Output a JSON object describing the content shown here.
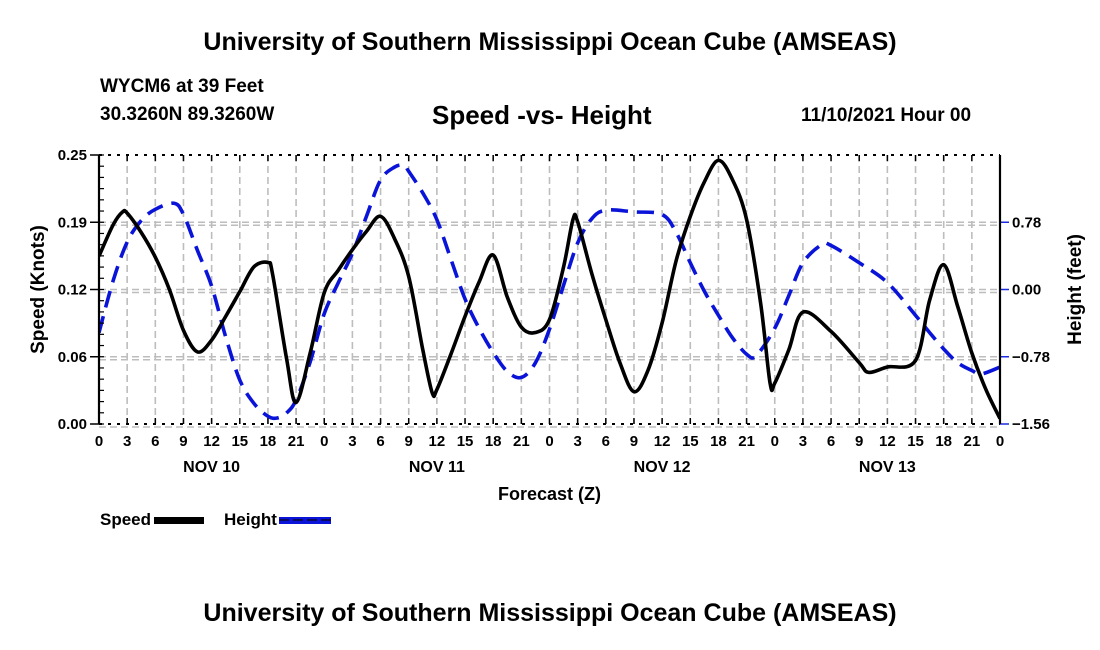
{
  "header": {
    "title": "University of Southern Mississippi Ocean Cube (AMSEAS)",
    "station": "WYCM6 at 39 Feet",
    "coordinates": "30.3260N  89.3260W",
    "chart_title": "Speed -vs- Height",
    "datetime": "11/10/2021 Hour 00"
  },
  "footer": {
    "title": "University of Southern Mississippi Ocean Cube (AMSEAS)"
  },
  "legend": {
    "speed_label": "Speed",
    "height_label": "Height"
  },
  "chart_data": {
    "type": "line",
    "title": "Speed -vs- Height",
    "xlabel": "Forecast (Z)",
    "ylabel": "Speed (Knots)",
    "y2label": "Height (feet)",
    "x_unit": "hours since 11/10/2021 00Z",
    "xlim": [
      0,
      96
    ],
    "ylim": [
      0,
      0.25
    ],
    "y2lim": [
      -1.56,
      1.56
    ],
    "grid": true,
    "legend_position": "bottom-left",
    "x_tick_labels": [
      "0",
      "3",
      "6",
      "9",
      "12",
      "15",
      "18",
      "21",
      "0",
      "3",
      "6",
      "9",
      "12",
      "15",
      "18",
      "21",
      "0",
      "3",
      "6",
      "9",
      "12",
      "15",
      "18",
      "21",
      "0",
      "3",
      "6",
      "9",
      "12",
      "15",
      "18",
      "21",
      "0"
    ],
    "day_labels": [
      {
        "label": "NOV 10",
        "center_hour": 12
      },
      {
        "label": "NOV 11",
        "center_hour": 36
      },
      {
        "label": "NOV 12",
        "center_hour": 60
      },
      {
        "label": "NOV 13",
        "center_hour": 84
      }
    ],
    "y_ticks": [
      {
        "value": 0.0,
        "label": "0.00"
      },
      {
        "value": 0.0625,
        "label": "0.06"
      },
      {
        "value": 0.125,
        "label": "0.12"
      },
      {
        "value": 0.1875,
        "label": "0.19"
      },
      {
        "value": 0.25,
        "label": "0.25"
      }
    ],
    "y2_ticks": [
      {
        "value": -1.56,
        "label": "−1.56"
      },
      {
        "value": -0.78,
        "label": "−0.78"
      },
      {
        "value": 0.0,
        "label": "0.00"
      },
      {
        "value": 0.78,
        "label": "0.78"
      }
    ],
    "series": [
      {
        "name": "Speed",
        "axis": "left",
        "color": "#000000",
        "style": "solid",
        "x": [
          0,
          1.5,
          2.5,
          3,
          4.5,
          6,
          7.5,
          9,
          10.5,
          12,
          13.5,
          15,
          16.5,
          18,
          18.5,
          20,
          21,
          22.5,
          24,
          25.5,
          27,
          28.5,
          30,
          31.5,
          33,
          34.5,
          35.5,
          36,
          37.5,
          39,
          40.5,
          42,
          43.5,
          45,
          46.5,
          48,
          49.5,
          50.5,
          51,
          52.5,
          54,
          55.5,
          57,
          58.5,
          60,
          61.5,
          63,
          64.5,
          66,
          67.5,
          69,
          70.5,
          71.5,
          72,
          73.5,
          75,
          78,
          81,
          82,
          84,
          87,
          88.5,
          90,
          91.5,
          93,
          94.5,
          96
        ],
        "values": [
          0.156,
          0.185,
          0.197,
          0.196,
          0.178,
          0.155,
          0.125,
          0.087,
          0.067,
          0.078,
          0.1,
          0.123,
          0.146,
          0.15,
          0.139,
          0.06,
          0.02,
          0.066,
          0.122,
          0.143,
          0.162,
          0.179,
          0.193,
          0.172,
          0.137,
          0.069,
          0.029,
          0.032,
          0.065,
          0.1,
          0.132,
          0.157,
          0.118,
          0.09,
          0.085,
          0.097,
          0.146,
          0.19,
          0.188,
          0.14,
          0.097,
          0.057,
          0.03,
          0.05,
          0.094,
          0.152,
          0.193,
          0.225,
          0.245,
          0.227,
          0.19,
          0.112,
          0.038,
          0.038,
          0.069,
          0.104,
          0.086,
          0.057,
          0.048,
          0.053,
          0.059,
          0.115,
          0.148,
          0.109,
          0.066,
          0.032,
          0.005
        ]
      },
      {
        "name": "Height",
        "axis": "right",
        "color": "#0a14d8",
        "style": "dashed",
        "x": [
          0,
          1.5,
          3,
          4.5,
          6,
          8,
          9,
          10.5,
          12,
          13.5,
          15,
          16.5,
          18,
          19,
          20,
          21,
          22.5,
          24,
          25.5,
          27,
          28.5,
          30,
          31.5,
          32.5,
          33,
          34.5,
          36,
          37.5,
          39,
          40.5,
          42,
          43.5,
          45,
          46.5,
          48,
          49.5,
          51,
          52.5,
          54,
          57,
          60,
          61.5,
          63,
          64.5,
          66,
          67.5,
          69,
          70,
          72,
          73.5,
          75,
          77,
          78,
          81,
          84,
          87,
          88.5,
          90,
          91.5,
          93,
          94,
          96
        ],
        "values": [
          -0.5,
          0.1,
          0.55,
          0.8,
          0.93,
          1.0,
          0.87,
          0.45,
          0.04,
          -0.55,
          -1.05,
          -1.32,
          -1.47,
          -1.49,
          -1.43,
          -1.28,
          -0.84,
          -0.28,
          0.08,
          0.42,
          0.85,
          1.27,
          1.42,
          1.44,
          1.37,
          1.12,
          0.81,
          0.35,
          -0.11,
          -0.45,
          -0.73,
          -0.95,
          -1.02,
          -0.85,
          -0.46,
          0.05,
          0.54,
          0.82,
          0.92,
          0.9,
          0.87,
          0.66,
          0.31,
          -0.02,
          -0.3,
          -0.56,
          -0.75,
          -0.77,
          -0.45,
          -0.07,
          0.31,
          0.52,
          0.51,
          0.31,
          0.08,
          -0.3,
          -0.5,
          -0.69,
          -0.85,
          -0.94,
          -0.98,
          -0.9
        ]
      }
    ]
  }
}
